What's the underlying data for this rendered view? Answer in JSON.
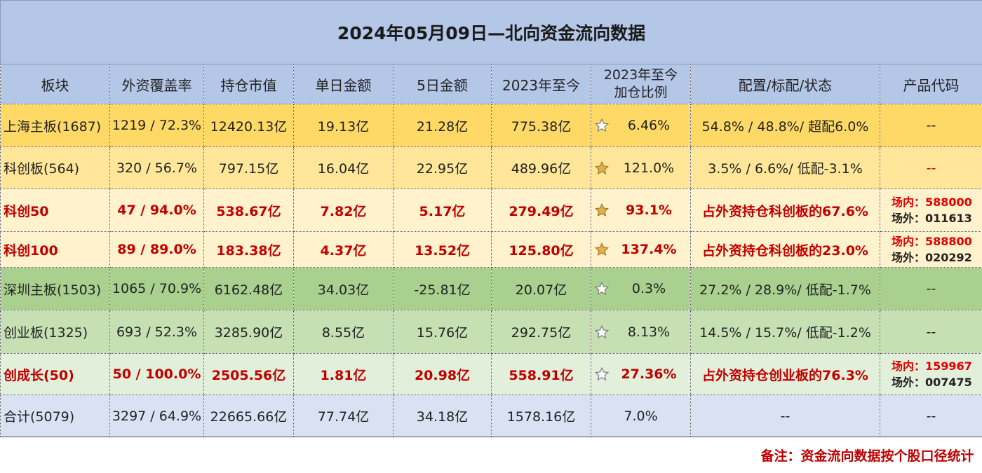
{
  "title": "2024年05月09日—北向资金流向数据",
  "headers": [
    "板块",
    "外资覆盖率",
    "持仓市值",
    "单日金额",
    "5日金额",
    "2023年至今",
    "2023年至今",
    "加仓比例",
    "配置/标配/状态",
    "产品代码"
  ],
  "rows": [
    {
      "board": "上海主板(1687)",
      "coverage": "1219 / 72.3%",
      "holding": "12420.13亿",
      "day": "19.13亿",
      "five_day": "21.28亿",
      "ytd": "775.38亿",
      "star_icon": "star-outline-icon",
      "ratio": "6.46%",
      "config": "54.8% / 48.8%/ 超配6.0%",
      "code": "--"
    },
    {
      "board": "科创板(564)",
      "coverage": "320 / 56.7%",
      "holding": "797.15亿",
      "day": "16.04亿",
      "five_day": "22.95亿",
      "ytd": "489.96亿",
      "star_icon": "star-gold-icon",
      "ratio": "121.0%",
      "config": "3.5% / 6.6%/ 低配-3.1%",
      "code": "--"
    },
    {
      "board": "科创50",
      "coverage": "47 / 94.0%",
      "holding": "538.67亿",
      "day": "7.82亿",
      "five_day": "5.17亿",
      "ytd": "279.49亿",
      "star_icon": "star-gold-icon",
      "ratio": "93.1%",
      "config": "占外资持仓科创板的67.6%",
      "code_in": "场内：588000",
      "code_out": "场外：011613"
    },
    {
      "board": "科创100",
      "coverage": "89 / 89.0%",
      "holding": "183.38亿",
      "day": "4.37亿",
      "five_day": "13.52亿",
      "ytd": "125.80亿",
      "star_icon": "star-gold-icon",
      "ratio": "137.4%",
      "config": "占外资持仓科创板的23.0%",
      "code_in": "场内：588800",
      "code_out": "场外：020292"
    },
    {
      "board": "深圳主板(1503)",
      "coverage": "1065 / 70.9%",
      "holding": "6162.48亿",
      "day": "34.03亿",
      "five_day": "-25.81亿",
      "ytd": "20.07亿",
      "star_icon": "star-outline-icon",
      "ratio": "0.3%",
      "config": "27.2% / 28.9%/ 低配-1.7%",
      "code": "--"
    },
    {
      "board": "创业板(1325)",
      "coverage": "693 / 52.3%",
      "holding": "3285.90亿",
      "day": "8.55亿",
      "five_day": "15.76亿",
      "ytd": "292.75亿",
      "star_icon": "star-outline-icon",
      "ratio": "8.13%",
      "config": "14.5% / 15.7%/ 低配-1.2%",
      "code": "--"
    },
    {
      "board": "创成长(50)",
      "coverage": "50 / 100.0%",
      "holding": "2505.56亿",
      "day": "1.81亿",
      "five_day": "20.98亿",
      "ytd": "558.91亿",
      "star_icon": "star-outline-icon",
      "ratio": "27.36%",
      "config": "占外资持仓创业板的76.3%",
      "code_in": "场内：159967",
      "code_out": "场外：007475"
    },
    {
      "board": "合计(5079)",
      "coverage": "3297 / 64.9%",
      "holding": "22665.66亿",
      "day": "77.74亿",
      "five_day": "34.18亿",
      "ytd": "1578.16亿",
      "ratio": "7.0%",
      "config": "--",
      "code": "--"
    }
  ],
  "note": "备注：资金流向数据按个股口径统计",
  "colors": {
    "header": "#b4c7e7",
    "sh": "#ffd966",
    "kc": "#ffe699",
    "kc_sub": "#fff2cc",
    "sz": "#a9d08e",
    "cy": "#c6e0b4",
    "cy_sub": "#e2efda",
    "total": "#d9e1f2",
    "emphasis": "#c00000",
    "star_gold": "#d4a437"
  }
}
